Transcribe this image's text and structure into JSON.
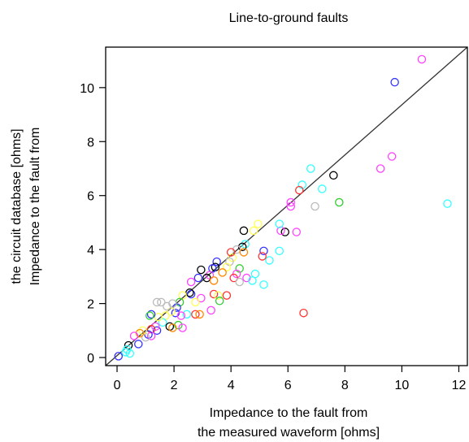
{
  "chart_data": {
    "type": "scatter",
    "title": "Line-to-ground faults",
    "xlabel_lines": [
      "Impedance to the fault from",
      "the measured waveform [ohms]"
    ],
    "ylabel_lines": [
      "Impedance to the fault from",
      "the circuit database [ohms]"
    ],
    "xlim": [
      -0.4,
      12.3
    ],
    "ylim": [
      -0.3,
      11.5
    ],
    "x_ticks": [
      0,
      2,
      4,
      6,
      8,
      10,
      12
    ],
    "y_ticks": [
      0,
      2,
      4,
      6,
      8,
      10
    ],
    "grid": false,
    "legend": "none",
    "reference_line": {
      "from": [
        -0.4,
        -0.3
      ],
      "to": [
        12.3,
        11.5
      ]
    },
    "marker": "open-circle",
    "points": [
      {
        "x": 10.7,
        "y": 11.05,
        "color": "#ff44ff"
      },
      {
        "x": 9.75,
        "y": 10.2,
        "color": "#3333ff"
      },
      {
        "x": 9.65,
        "y": 7.45,
        "color": "#ff44ff"
      },
      {
        "x": 9.25,
        "y": 7.0,
        "color": "#ff44ff"
      },
      {
        "x": 11.6,
        "y": 5.7,
        "color": "#33ffff"
      },
      {
        "x": 7.8,
        "y": 5.75,
        "color": "#33cc33"
      },
      {
        "x": 7.6,
        "y": 6.75,
        "color": "#000000"
      },
      {
        "x": 7.2,
        "y": 6.25,
        "color": "#33ffff"
      },
      {
        "x": 6.8,
        "y": 7.0,
        "color": "#33ffff"
      },
      {
        "x": 6.95,
        "y": 5.6,
        "color": "#bbbbbb"
      },
      {
        "x": 6.5,
        "y": 6.4,
        "color": "#33ffff"
      },
      {
        "x": 6.4,
        "y": 6.2,
        "color": "#ff3333"
      },
      {
        "x": 6.1,
        "y": 5.75,
        "color": "#ff44ff"
      },
      {
        "x": 6.1,
        "y": 5.6,
        "color": "#ff44ff"
      },
      {
        "x": 6.3,
        "y": 4.65,
        "color": "#ff44ff"
      },
      {
        "x": 5.9,
        "y": 4.65,
        "color": "#000000"
      },
      {
        "x": 5.75,
        "y": 4.7,
        "color": "#ff44ff"
      },
      {
        "x": 5.7,
        "y": 4.95,
        "color": "#33ffff"
      },
      {
        "x": 5.7,
        "y": 3.95,
        "color": "#33ffff"
      },
      {
        "x": 5.35,
        "y": 3.6,
        "color": "#33ffff"
      },
      {
        "x": 5.15,
        "y": 3.95,
        "color": "#3333ff"
      },
      {
        "x": 5.1,
        "y": 3.75,
        "color": "#ff3333"
      },
      {
        "x": 5.15,
        "y": 2.7,
        "color": "#33ffff"
      },
      {
        "x": 6.55,
        "y": 1.65,
        "color": "#ff3333"
      },
      {
        "x": 4.95,
        "y": 4.95,
        "color": "#ffff55"
      },
      {
        "x": 4.8,
        "y": 4.7,
        "color": "#ffff55"
      },
      {
        "x": 4.45,
        "y": 4.7,
        "color": "#000000"
      },
      {
        "x": 4.5,
        "y": 4.2,
        "color": "#33ffff"
      },
      {
        "x": 4.4,
        "y": 4.1,
        "color": "#000000"
      },
      {
        "x": 4.2,
        "y": 4.0,
        "color": "#bbbbbb"
      },
      {
        "x": 4.05,
        "y": 3.7,
        "color": "#ffff55"
      },
      {
        "x": 4.0,
        "y": 3.9,
        "color": "#ff3333"
      },
      {
        "x": 4.45,
        "y": 3.9,
        "color": "#ff8800"
      },
      {
        "x": 4.3,
        "y": 3.3,
        "color": "#33cc33"
      },
      {
        "x": 4.2,
        "y": 3.1,
        "color": "#ff44ff"
      },
      {
        "x": 4.1,
        "y": 2.95,
        "color": "#ff3333"
      },
      {
        "x": 4.3,
        "y": 2.8,
        "color": "#bbbbbb"
      },
      {
        "x": 4.55,
        "y": 2.95,
        "color": "#ff44ff"
      },
      {
        "x": 4.85,
        "y": 3.1,
        "color": "#33ffff"
      },
      {
        "x": 4.75,
        "y": 2.85,
        "color": "#33ffff"
      },
      {
        "x": 3.95,
        "y": 3.55,
        "color": "#bbbbbb"
      },
      {
        "x": 3.85,
        "y": 3.35,
        "color": "#ffff55"
      },
      {
        "x": 3.7,
        "y": 3.15,
        "color": "#ff8800"
      },
      {
        "x": 3.85,
        "y": 2.3,
        "color": "#ff3333"
      },
      {
        "x": 3.5,
        "y": 3.55,
        "color": "#3333ff"
      },
      {
        "x": 3.45,
        "y": 3.35,
        "color": "#000000"
      },
      {
        "x": 3.35,
        "y": 3.3,
        "color": "#3333ff"
      },
      {
        "x": 3.25,
        "y": 3.05,
        "color": "#ff44ff"
      },
      {
        "x": 3.15,
        "y": 2.95,
        "color": "#000000"
      },
      {
        "x": 3.4,
        "y": 2.85,
        "color": "#ff8800"
      },
      {
        "x": 3.4,
        "y": 2.35,
        "color": "#ff3333"
      },
      {
        "x": 3.55,
        "y": 2.3,
        "color": "#ffff55"
      },
      {
        "x": 3.6,
        "y": 2.1,
        "color": "#33cc33"
      },
      {
        "x": 3.3,
        "y": 1.75,
        "color": "#ff44ff"
      },
      {
        "x": 2.95,
        "y": 3.25,
        "color": "#000000"
      },
      {
        "x": 2.85,
        "y": 2.95,
        "color": "#3333ff"
      },
      {
        "x": 2.95,
        "y": 2.2,
        "color": "#ff44ff"
      },
      {
        "x": 2.75,
        "y": 2.05,
        "color": "#ffff55"
      },
      {
        "x": 2.6,
        "y": 2.35,
        "color": "#3333ff"
      },
      {
        "x": 2.55,
        "y": 2.4,
        "color": "#000000"
      },
      {
        "x": 2.45,
        "y": 1.6,
        "color": "#33ffff"
      },
      {
        "x": 2.75,
        "y": 1.6,
        "color": "#ff3333"
      },
      {
        "x": 2.9,
        "y": 1.6,
        "color": "#ff8800"
      },
      {
        "x": 2.6,
        "y": 2.8,
        "color": "#ff44ff"
      },
      {
        "x": 2.3,
        "y": 2.3,
        "color": "#ffff55"
      },
      {
        "x": 2.2,
        "y": 2.05,
        "color": "#33cc33"
      },
      {
        "x": 2.1,
        "y": 1.85,
        "color": "#3333ff"
      },
      {
        "x": 2.05,
        "y": 1.65,
        "color": "#3333ff"
      },
      {
        "x": 2.25,
        "y": 1.55,
        "color": "#ff44ff"
      },
      {
        "x": 1.95,
        "y": 2.0,
        "color": "#bbbbbb"
      },
      {
        "x": 1.9,
        "y": 1.7,
        "color": "#ffff55"
      },
      {
        "x": 2.15,
        "y": 1.2,
        "color": "#33cc33"
      },
      {
        "x": 2.3,
        "y": 1.1,
        "color": "#ff44ff"
      },
      {
        "x": 1.75,
        "y": 1.9,
        "color": "#bbbbbb"
      },
      {
        "x": 1.7,
        "y": 1.55,
        "color": "#ffff55"
      },
      {
        "x": 1.6,
        "y": 1.3,
        "color": "#33ffff"
      },
      {
        "x": 1.55,
        "y": 2.05,
        "color": "#bbbbbb"
      },
      {
        "x": 1.4,
        "y": 2.05,
        "color": "#bbbbbb"
      },
      {
        "x": 1.45,
        "y": 1.5,
        "color": "#ffff55"
      },
      {
        "x": 1.4,
        "y": 1.0,
        "color": "#3333ff"
      },
      {
        "x": 1.2,
        "y": 1.6,
        "color": "#3333ff"
      },
      {
        "x": 1.15,
        "y": 1.55,
        "color": "#33cc33"
      },
      {
        "x": 1.35,
        "y": 1.15,
        "color": "#ff44ff"
      },
      {
        "x": 1.2,
        "y": 1.05,
        "color": "#ff3333"
      },
      {
        "x": 1.2,
        "y": 0.8,
        "color": "#ff44ff"
      },
      {
        "x": 1.1,
        "y": 0.85,
        "color": "#3333ff"
      },
      {
        "x": 1.0,
        "y": 0.75,
        "color": "#bbbbbb"
      },
      {
        "x": 1.85,
        "y": 1.15,
        "color": "#000000"
      },
      {
        "x": 1.95,
        "y": 1.1,
        "color": "#ff8800"
      },
      {
        "x": 0.9,
        "y": 1.0,
        "color": "#ffff55"
      },
      {
        "x": 0.8,
        "y": 0.9,
        "color": "#ff8800"
      },
      {
        "x": 0.6,
        "y": 0.8,
        "color": "#ff44ff"
      },
      {
        "x": 0.75,
        "y": 0.5,
        "color": "#3333ff"
      },
      {
        "x": 0.4,
        "y": 0.45,
        "color": "#000000"
      },
      {
        "x": 0.35,
        "y": 0.3,
        "color": "#33ffff"
      },
      {
        "x": 0.3,
        "y": 0.2,
        "color": "#33ffff"
      },
      {
        "x": 0.45,
        "y": 0.15,
        "color": "#33ffff"
      },
      {
        "x": 0.05,
        "y": 0.05,
        "color": "#3333ff"
      }
    ]
  }
}
